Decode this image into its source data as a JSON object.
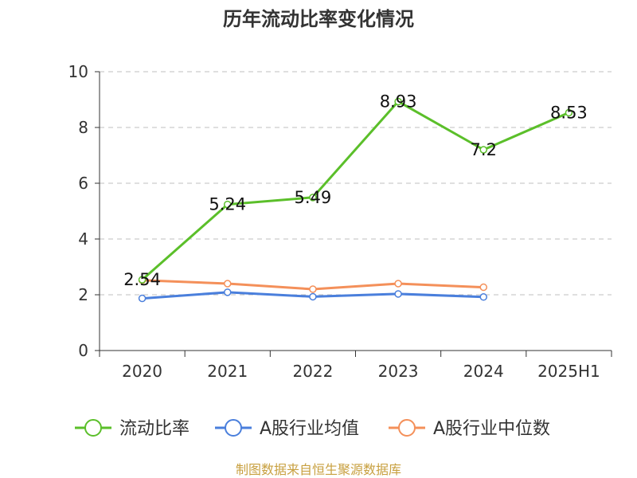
{
  "chart_data": {
    "type": "line",
    "title": "历年流动比率变化情况",
    "categories": [
      "2020",
      "2021",
      "2022",
      "2023",
      "2024",
      "2025H1"
    ],
    "ylim": [
      0,
      10
    ],
    "yticks": [
      0,
      2,
      4,
      6,
      8,
      10
    ],
    "ytick_labels": [
      "0",
      "2",
      "4",
      "6",
      "8",
      "10"
    ],
    "grid": true,
    "legend_position": "bottom",
    "series": [
      {
        "name": "流动比率",
        "color": "#5bbf2a",
        "values": [
          2.54,
          5.24,
          5.49,
          8.93,
          7.2,
          8.53
        ],
        "labels": [
          "2.54",
          "5.24",
          "5.49",
          "8.93",
          "7.2",
          "8.53"
        ]
      },
      {
        "name": "A股行业均值",
        "color": "#4a7fdc",
        "values": [
          1.87,
          2.09,
          1.93,
          2.03,
          1.92,
          null
        ]
      },
      {
        "name": "A股行业中位数",
        "color": "#f4905a",
        "values": [
          2.52,
          2.4,
          2.2,
          2.4,
          2.27,
          null
        ]
      }
    ]
  },
  "source_note": "制图数据来自恒生聚源数据库"
}
